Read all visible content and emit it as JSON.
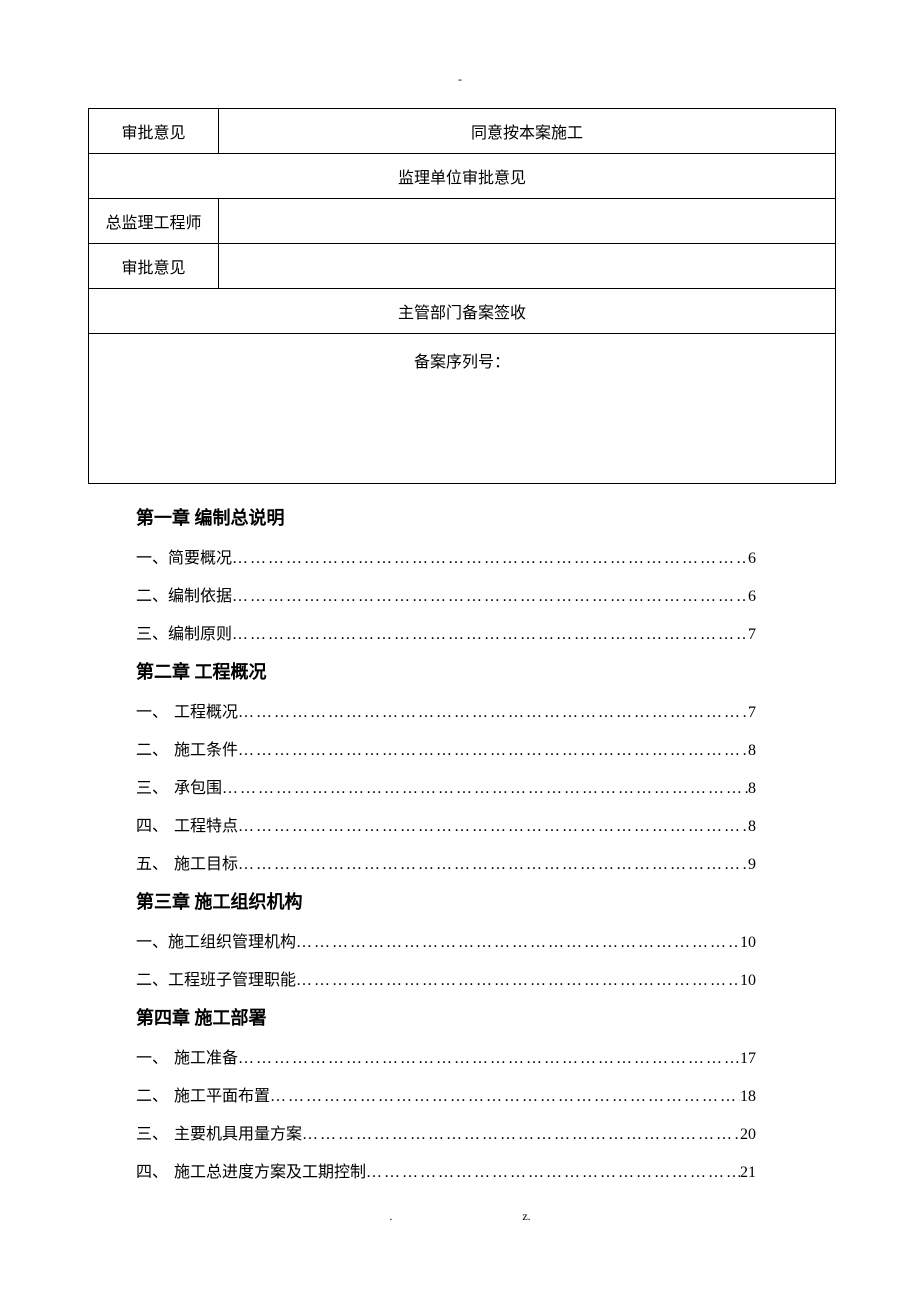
{
  "header_dash": "-",
  "table": {
    "row1": {
      "left": "审批意见",
      "right": "同意按本案施工"
    },
    "row2_merged": "监理单位审批意见",
    "row3": {
      "left": "总监理工程师",
      "right": ""
    },
    "row4": {
      "left": "审批意见",
      "right": ""
    },
    "row5_merged": "主管部门备案签收",
    "row6_merged": "备案序列号："
  },
  "chapters": [
    {
      "title": "第一章   编制总说明",
      "items": [
        {
          "num": "一、",
          "label": "简要概况",
          "page": "6",
          "gap": false
        },
        {
          "num": "二、",
          "label": "编制依据",
          "page": "6",
          "gap": false
        },
        {
          "num": "三、",
          "label": "编制原则",
          "page": "7",
          "gap": false
        }
      ]
    },
    {
      "title": "第二章   工程概况",
      "items": [
        {
          "num": "一、",
          "label": "工程概况",
          "page": "7",
          "gap": true
        },
        {
          "num": "二、",
          "label": "施工条件",
          "page": "8",
          "gap": true
        },
        {
          "num": "三、",
          "label": "承包围",
          "page": "8",
          "gap": true
        },
        {
          "num": "四、",
          "label": "工程特点",
          "page": "8",
          "gap": true
        },
        {
          "num": "五、",
          "label": "施工目标",
          "page": "9",
          "gap": true
        }
      ]
    },
    {
      "title": "第三章   施工组织机构",
      "items": [
        {
          "num": "一、",
          "label": "施工组织管理机构",
          "page": "10",
          "gap": false
        },
        {
          "num": "二、",
          "label": "工程班子管理职能",
          "page": "10",
          "gap": false
        }
      ]
    },
    {
      "title": "第四章   施工部署",
      "items": [
        {
          "num": "一、",
          "label": "施工准备",
          "page": "17",
          "gap": true
        },
        {
          "num": "二、",
          "label": "施工平面布置",
          "page": "18",
          "gap": true
        },
        {
          "num": "三、",
          "label": "主要机具用量方案",
          "page": "20",
          "gap": true
        },
        {
          "num": "四、",
          "label": "施工总进度方案及工期控制",
          "page": "21",
          "gap": true
        }
      ]
    }
  ],
  "footer": {
    "left": ".",
    "right": "z."
  }
}
